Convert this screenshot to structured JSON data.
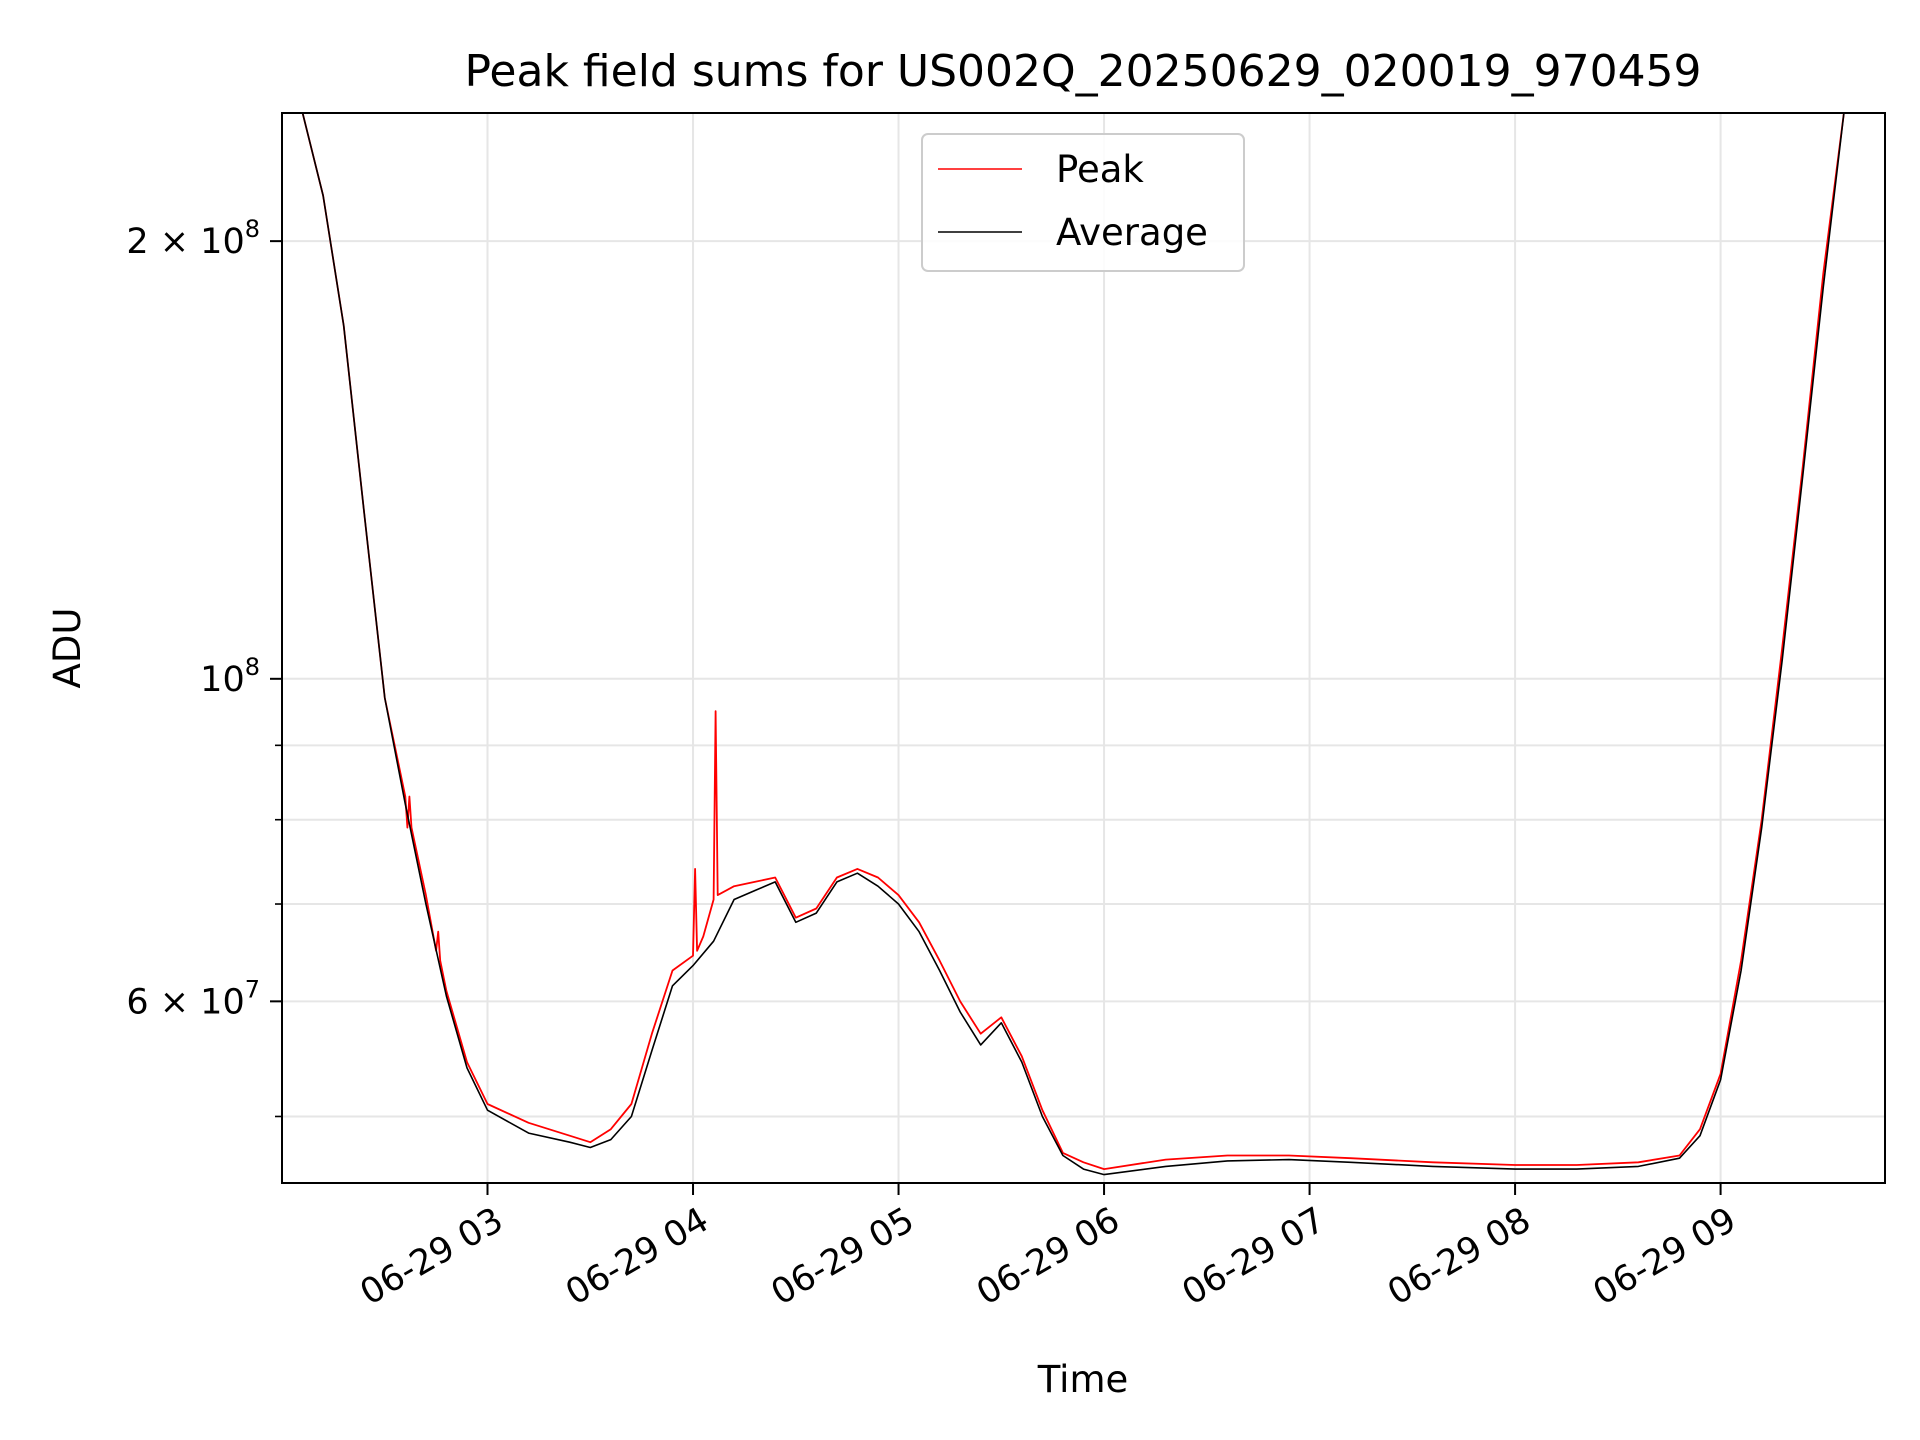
{
  "chart_data": {
    "type": "line",
    "title": "Peak field sums for US002Q_20250629_020019_970459",
    "xlabel": "Time",
    "ylabel": "ADU",
    "x_axis": {
      "unit": "hours on 2025-06-29",
      "range": [
        2.0,
        9.8
      ],
      "ticks": [
        {
          "value": 3,
          "label": "06-29 03"
        },
        {
          "value": 4,
          "label": "06-29 04"
        },
        {
          "value": 5,
          "label": "06-29 05"
        },
        {
          "value": 6,
          "label": "06-29 06"
        },
        {
          "value": 7,
          "label": "06-29 07"
        },
        {
          "value": 8,
          "label": "06-29 08"
        },
        {
          "value": 9,
          "label": "06-29 09"
        }
      ]
    },
    "y_axis": {
      "scale": "log",
      "range": [
        45000000,
        245000000
      ],
      "major_ticks": [
        {
          "value": 60000000,
          "base": "6",
          "exp": "7"
        },
        {
          "value": 100000000,
          "base": "",
          "exp": "8"
        },
        {
          "value": 200000000,
          "base": "2",
          "exp": "8"
        }
      ],
      "minor_ticks": [
        50000000,
        70000000,
        80000000,
        90000000
      ]
    },
    "grid": true,
    "legend": {
      "placement": "top-center"
    },
    "colors": {
      "peak": "#ff0000",
      "average": "#000000",
      "grid": "#e6e6e6"
    },
    "series": [
      {
        "name": "Peak",
        "color": "#ff0000",
        "x": [
          2.0,
          2.1,
          2.2,
          2.3,
          2.4,
          2.5,
          2.6,
          2.61,
          2.62,
          2.63,
          2.7,
          2.75,
          2.76,
          2.77,
          2.8,
          2.9,
          3.0,
          3.2,
          3.4,
          3.5,
          3.6,
          3.7,
          3.8,
          3.9,
          4.0,
          4.01,
          4.02,
          4.05,
          4.1,
          4.11,
          4.12,
          4.2,
          4.3,
          4.4,
          4.5,
          4.6,
          4.7,
          4.8,
          4.9,
          5.0,
          5.1,
          5.2,
          5.3,
          5.4,
          5.5,
          5.6,
          5.7,
          5.8,
          5.9,
          6.0,
          6.3,
          6.6,
          6.9,
          7.2,
          7.6,
          8.0,
          8.3,
          8.6,
          8.8,
          8.9,
          9.0,
          9.1,
          9.2,
          9.3,
          9.4,
          9.5,
          9.6,
          9.7,
          9.8
        ],
        "values": [
          245000000,
          245000000,
          215000000,
          175000000,
          130000000,
          97000000,
          83000000,
          79000000,
          83000000,
          79000000,
          71000000,
          65000000,
          67000000,
          64000000,
          61000000,
          54500000,
          51000000,
          49500000,
          48500000,
          48000000,
          49000000,
          51000000,
          57000000,
          63000000,
          64500000,
          74000000,
          65000000,
          66500000,
          70500000,
          95000000,
          71000000,
          72000000,
          72500000,
          73000000,
          68500000,
          69500000,
          73000000,
          74000000,
          73000000,
          71000000,
          68000000,
          64000000,
          60000000,
          57000000,
          58500000,
          55000000,
          50500000,
          47200000,
          46500000,
          46000000,
          46700000,
          47000000,
          47000000,
          46800000,
          46500000,
          46300000,
          46300000,
          46500000,
          47000000,
          49000000,
          53500000,
          64000000,
          80000000,
          105000000,
          140000000,
          190000000,
          245000000,
          245000000,
          245000000
        ]
      },
      {
        "name": "Average",
        "color": "#000000",
        "x": [
          2.0,
          2.1,
          2.2,
          2.3,
          2.4,
          2.5,
          2.6,
          2.7,
          2.8,
          2.9,
          3.0,
          3.2,
          3.4,
          3.5,
          3.6,
          3.7,
          3.8,
          3.9,
          4.0,
          4.1,
          4.2,
          4.3,
          4.4,
          4.5,
          4.6,
          4.7,
          4.8,
          4.9,
          5.0,
          5.1,
          5.2,
          5.3,
          5.4,
          5.5,
          5.6,
          5.7,
          5.8,
          5.9,
          6.0,
          6.3,
          6.6,
          6.9,
          7.2,
          7.6,
          8.0,
          8.3,
          8.6,
          8.8,
          8.9,
          9.0,
          9.1,
          9.2,
          9.3,
          9.4,
          9.5,
          9.6,
          9.7,
          9.8
        ],
        "values": [
          245000000,
          245000000,
          215000000,
          175000000,
          130000000,
          97000000,
          82000000,
          70000000,
          60500000,
          54000000,
          50500000,
          48700000,
          48000000,
          47600000,
          48200000,
          50000000,
          55500000,
          61500000,
          63500000,
          66000000,
          70500000,
          71500000,
          72500000,
          68000000,
          69000000,
          72500000,
          73500000,
          72000000,
          70000000,
          67000000,
          63000000,
          59000000,
          56000000,
          58000000,
          54500000,
          50000000,
          47000000,
          46000000,
          45600000,
          46200000,
          46600000,
          46700000,
          46500000,
          46200000,
          46000000,
          46000000,
          46200000,
          46800000,
          48500000,
          53000000,
          63000000,
          79000000,
          103000000,
          138000000,
          186000000,
          245000000,
          245000000,
          245000000
        ]
      }
    ]
  }
}
